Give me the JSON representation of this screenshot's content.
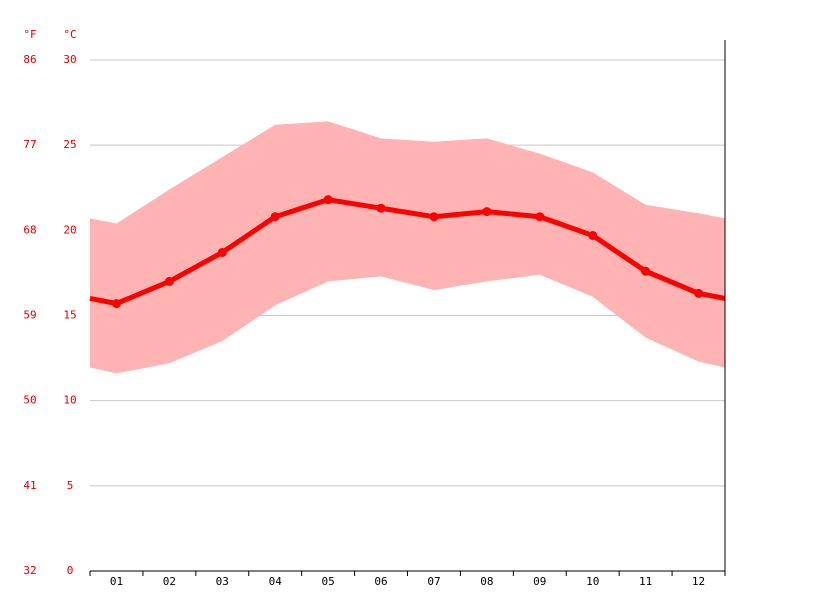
{
  "chart_data": {
    "type": "climate",
    "categories": [
      "01",
      "02",
      "03",
      "04",
      "05",
      "06",
      "07",
      "08",
      "09",
      "10",
      "11",
      "12"
    ],
    "series": [
      {
        "type": "band",
        "color": "#ffb3b3",
        "high": [
          20.4,
          22.4,
          24.3,
          26.2,
          26.4,
          25.4,
          25.2,
          25.4,
          24.5,
          23.4,
          21.5,
          21.0
        ],
        "low": [
          11.6,
          12.2,
          13.5,
          15.6,
          17.0,
          17.3,
          16.5,
          17.0,
          17.4,
          16.1,
          13.7,
          12.3
        ]
      },
      {
        "type": "line",
        "color": "#ff0000",
        "values": [
          15.7,
          17.0,
          18.7,
          20.8,
          21.8,
          21.3,
          20.8,
          21.1,
          20.8,
          19.7,
          17.6,
          16.3
        ]
      }
    ],
    "y_unit": "°C",
    "y2_unit": "°F",
    "ylim": [
      0,
      30
    ],
    "yticks": [
      0,
      5,
      10,
      15,
      20,
      25,
      30
    ],
    "y2lim": [
      32,
      86
    ],
    "y2ticks": [
      32,
      41,
      50,
      59,
      68,
      77,
      86
    ],
    "label_color": "#e00000",
    "grid": true
  }
}
